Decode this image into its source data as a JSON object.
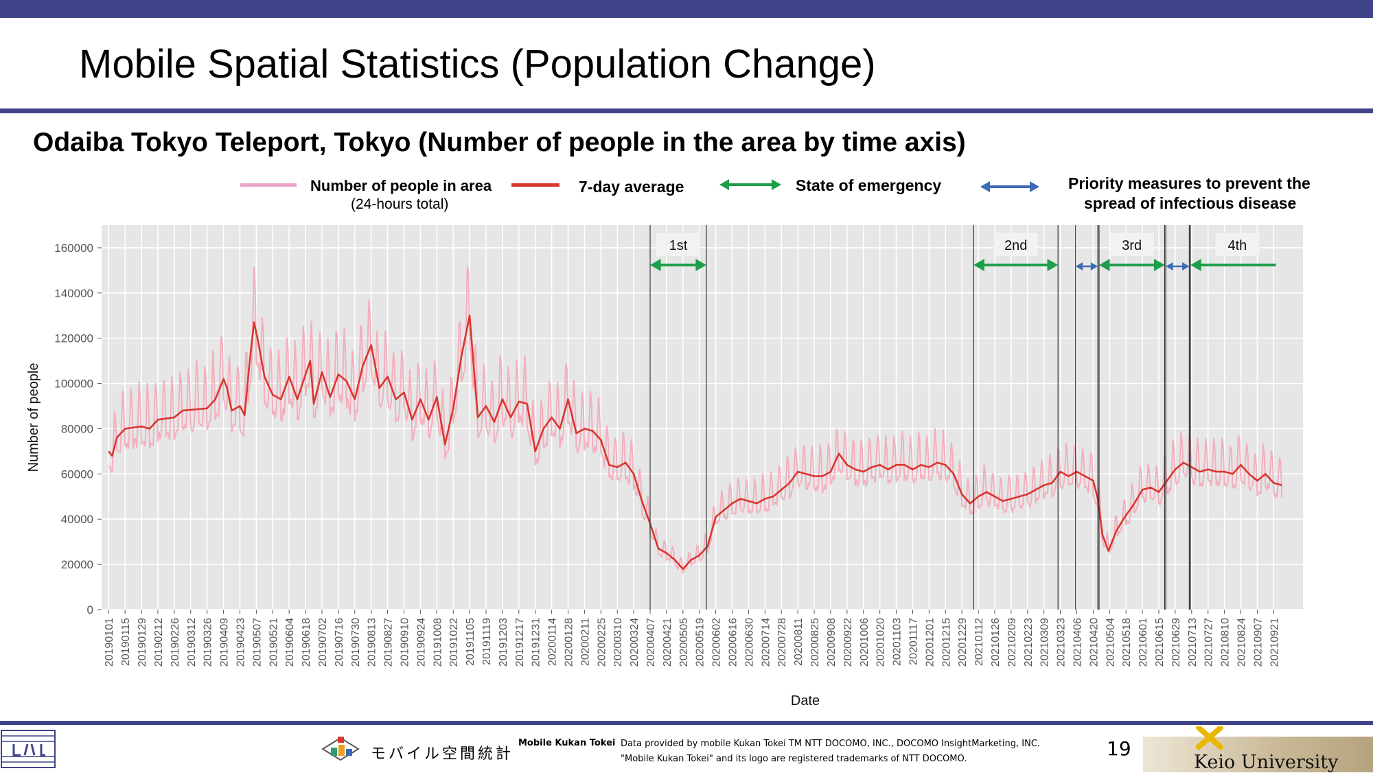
{
  "header": {
    "title": "Mobile Spatial Statistics (Population Change)"
  },
  "colors": {
    "bar": "#3f4488",
    "raw_series": "#f4a9b8",
    "avg_series": "#d8362f",
    "emergency": "#1e9e4c",
    "priority": "#3d6bb5",
    "panel_bg": "#e6e6e6",
    "grid": "#ffffff"
  },
  "legend": {
    "raw_line1": "Number of people in area",
    "raw_line2": "(24-hours total)",
    "avg": "7-day average",
    "emergency": "State of emergency",
    "priority_line1": "Priority measures to prevent the",
    "priority_line2": "spread of infectious disease"
  },
  "chart_data": {
    "type": "line",
    "title": "Odaiba Tokyo Teleport, Tokyo (Number of people in the area by time axis)",
    "xlabel": "Date",
    "ylabel": "Number of people",
    "ylim": [
      0,
      170000
    ],
    "yticks": [
      0,
      20000,
      40000,
      60000,
      80000,
      100000,
      120000,
      140000,
      160000
    ],
    "ytick_labels": [
      "0",
      "20000",
      "40000",
      "60000",
      "80000",
      "100000",
      "120000",
      "140000",
      "160000"
    ],
    "x_range": [
      "20190101",
      "20210930"
    ],
    "xtick_labels": [
      "20190101",
      "20190115",
      "20190129",
      "20190212",
      "20190226",
      "20190312",
      "20190326",
      "20190409",
      "20190423",
      "20190507",
      "20190521",
      "20190604",
      "20190618",
      "20190702",
      "20190716",
      "20190730",
      "20190813",
      "20190827",
      "20190910",
      "20190924",
      "20191008",
      "20191022",
      "20191105",
      "20191119",
      "20191203",
      "20191217",
      "20191231",
      "20200114",
      "20200128",
      "20200211",
      "20200225",
      "20200310",
      "20200324",
      "20200407",
      "20200421",
      "20200505",
      "20200519",
      "20200602",
      "20200616",
      "20200630",
      "20200714",
      "20200728",
      "20200811",
      "20200825",
      "20200908",
      "20200922",
      "20201006",
      "20201020",
      "20201103",
      "20201117",
      "20201201",
      "20201215",
      "20201229",
      "20210112",
      "20210126",
      "20210209",
      "20210223",
      "20210309",
      "20210323",
      "20210406",
      "20210420",
      "20210504",
      "20210518",
      "20210601",
      "20210615",
      "20210629",
      "20210713",
      "20210727",
      "20210810",
      "20210824",
      "20210907",
      "20210921"
    ],
    "grid": true,
    "legend_position": "top",
    "series": [
      {
        "name": "7-day average",
        "points": [
          [
            "20190101",
            70000
          ],
          [
            "20190104",
            68000
          ],
          [
            "20190108",
            76000
          ],
          [
            "20190115",
            80000
          ],
          [
            "20190129",
            81000
          ],
          [
            "20190205",
            80000
          ],
          [
            "20190212",
            84000
          ],
          [
            "20190226",
            85000
          ],
          [
            "20190305",
            88000
          ],
          [
            "20190326",
            89000
          ],
          [
            "20190402",
            93000
          ],
          [
            "20190409",
            102000
          ],
          [
            "20190412",
            98000
          ],
          [
            "20190416",
            88000
          ],
          [
            "20190423",
            90000
          ],
          [
            "20190427",
            86000
          ],
          [
            "20190501",
            108000
          ],
          [
            "20190505",
            127000
          ],
          [
            "20190508",
            120000
          ],
          [
            "20190514",
            103000
          ],
          [
            "20190521",
            95000
          ],
          [
            "20190528",
            93000
          ],
          [
            "20190604",
            103000
          ],
          [
            "20190611",
            93000
          ],
          [
            "20190618",
            104000
          ],
          [
            "20190622",
            110000
          ],
          [
            "20190625",
            91000
          ],
          [
            "20190702",
            105000
          ],
          [
            "20190709",
            94000
          ],
          [
            "20190716",
            104000
          ],
          [
            "20190723",
            101000
          ],
          [
            "20190730",
            93000
          ],
          [
            "20190806",
            108000
          ],
          [
            "20190813",
            117000
          ],
          [
            "20190820",
            98000
          ],
          [
            "20190827",
            103000
          ],
          [
            "20190903",
            93000
          ],
          [
            "20190910",
            96000
          ],
          [
            "20190917",
            84000
          ],
          [
            "20190924",
            93000
          ],
          [
            "20191001",
            84000
          ],
          [
            "20191008",
            94000
          ],
          [
            "20191015",
            73000
          ],
          [
            "20191022",
            89000
          ],
          [
            "20191029",
            112000
          ],
          [
            "20191105",
            130000
          ],
          [
            "20191112",
            85000
          ],
          [
            "20191119",
            90000
          ],
          [
            "20191126",
            83000
          ],
          [
            "20191203",
            93000
          ],
          [
            "20191210",
            85000
          ],
          [
            "20191217",
            92000
          ],
          [
            "20191224",
            91000
          ],
          [
            "20191231",
            70000
          ],
          [
            "20200107",
            80000
          ],
          [
            "20200114",
            85000
          ],
          [
            "20200121",
            80000
          ],
          [
            "20200128",
            93000
          ],
          [
            "20200204",
            78000
          ],
          [
            "20200211",
            80000
          ],
          [
            "20200218",
            79000
          ],
          [
            "20200225",
            75000
          ],
          [
            "20200303",
            64000
          ],
          [
            "20200310",
            63000
          ],
          [
            "20200317",
            65000
          ],
          [
            "20200324",
            60000
          ],
          [
            "20200331",
            48000
          ],
          [
            "20200407",
            38000
          ],
          [
            "20200414",
            27000
          ],
          [
            "20200421",
            25000
          ],
          [
            "20200428",
            22000
          ],
          [
            "20200505",
            18000
          ],
          [
            "20200512",
            22000
          ],
          [
            "20200519",
            24000
          ],
          [
            "20200526",
            28000
          ],
          [
            "20200602",
            41000
          ],
          [
            "20200609",
            44000
          ],
          [
            "20200616",
            47000
          ],
          [
            "20200623",
            49000
          ],
          [
            "20200630",
            48000
          ],
          [
            "20200707",
            47000
          ],
          [
            "20200714",
            49000
          ],
          [
            "20200721",
            50000
          ],
          [
            "20200728",
            53000
          ],
          [
            "20200804",
            56000
          ],
          [
            "20200811",
            61000
          ],
          [
            "20200818",
            60000
          ],
          [
            "20200825",
            59000
          ],
          [
            "20200901",
            59000
          ],
          [
            "20200908",
            61000
          ],
          [
            "20200915",
            69000
          ],
          [
            "20200922",
            64000
          ],
          [
            "20200929",
            62000
          ],
          [
            "20201006",
            61000
          ],
          [
            "20201013",
            63000
          ],
          [
            "20201020",
            64000
          ],
          [
            "20201027",
            62000
          ],
          [
            "20201103",
            64000
          ],
          [
            "20201110",
            64000
          ],
          [
            "20201117",
            62000
          ],
          [
            "20201124",
            64000
          ],
          [
            "20201201",
            63000
          ],
          [
            "20201208",
            65000
          ],
          [
            "20201215",
            64000
          ],
          [
            "20201222",
            60000
          ],
          [
            "20201229",
            51000
          ],
          [
            "20210105",
            47000
          ],
          [
            "20210112",
            50000
          ],
          [
            "20210119",
            52000
          ],
          [
            "20210126",
            50000
          ],
          [
            "20210202",
            48000
          ],
          [
            "20210209",
            49000
          ],
          [
            "20210216",
            50000
          ],
          [
            "20210223",
            51000
          ],
          [
            "20210302",
            53000
          ],
          [
            "20210309",
            55000
          ],
          [
            "20210316",
            56000
          ],
          [
            "20210323",
            61000
          ],
          [
            "20210330",
            59000
          ],
          [
            "20210406",
            61000
          ],
          [
            "20210413",
            59000
          ],
          [
            "20210420",
            57000
          ],
          [
            "20210424",
            49000
          ],
          [
            "20210428",
            33000
          ],
          [
            "20210503",
            26000
          ],
          [
            "20210510",
            35000
          ],
          [
            "20210517",
            41000
          ],
          [
            "20210524",
            46000
          ],
          [
            "20210601",
            53000
          ],
          [
            "20210608",
            54000
          ],
          [
            "20210615",
            52000
          ],
          [
            "20210622",
            57000
          ],
          [
            "20210629",
            62000
          ],
          [
            "20210706",
            65000
          ],
          [
            "20210713",
            63000
          ],
          [
            "20210720",
            61000
          ],
          [
            "20210727",
            62000
          ],
          [
            "20210803",
            61000
          ],
          [
            "20210810",
            61000
          ],
          [
            "20210817",
            60000
          ],
          [
            "20210824",
            64000
          ],
          [
            "20210831",
            60000
          ],
          [
            "20210907",
            57000
          ],
          [
            "20210914",
            60000
          ],
          [
            "20210921",
            56000
          ],
          [
            "20210928",
            55000
          ]
        ]
      }
    ],
    "periods": [
      {
        "kind": "emergency",
        "label": "1st",
        "start": "20200407",
        "end": "20200525"
      },
      {
        "kind": "emergency",
        "label": "2nd",
        "start": "20210108",
        "end": "20210321"
      },
      {
        "kind": "priority",
        "label": "",
        "start": "20210405",
        "end": "20210424"
      },
      {
        "kind": "emergency",
        "label": "3rd",
        "start": "20210425",
        "end": "20210620"
      },
      {
        "kind": "priority",
        "label": "",
        "start": "20210621",
        "end": "20210711"
      },
      {
        "kind": "emergency",
        "label": "4th",
        "start": "20210712",
        "end": "20210930"
      }
    ]
  },
  "footer": {
    "mkt_jp": "モバイル空間統計",
    "mkt_en": "Mobile Kukan Tokei",
    "credit_line1": "Data provided by mobile Kukan Tokei TM NTT DOCOMO, INC., DOCOMO InsightMarketing, INC.",
    "credit_line2": "\"Mobile Kukan Tokei\" and its logo are registered trademarks of NTT DOCOMO.",
    "page_number": "19",
    "university": "Keio University"
  }
}
